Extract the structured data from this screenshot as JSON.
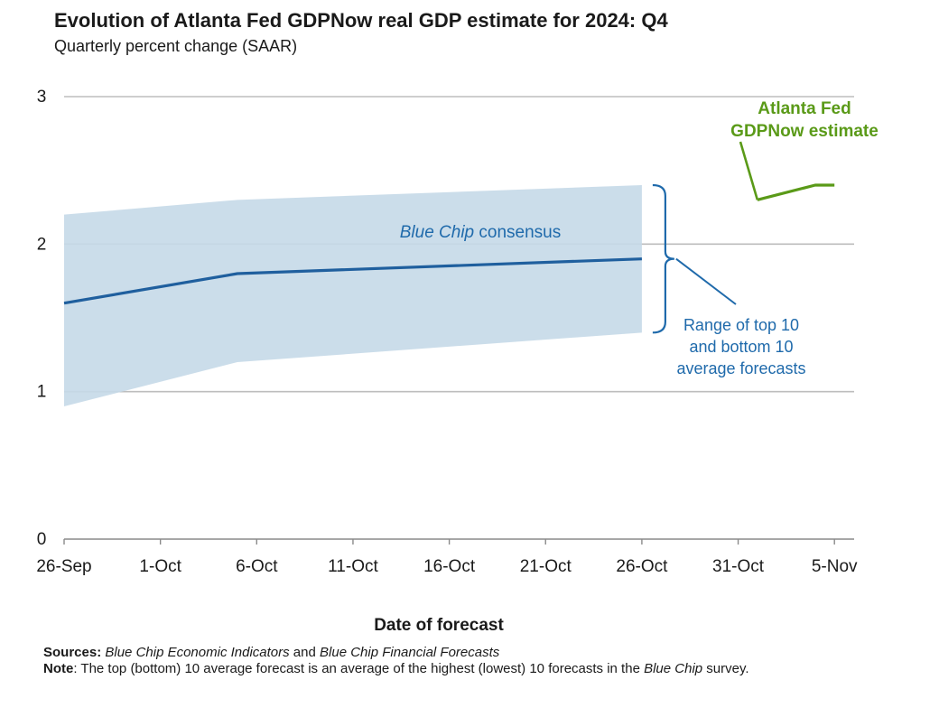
{
  "title": "Evolution of Atlanta Fed GDPNow real GDP estimate for 2024: Q4",
  "subtitle": "Quarterly percent change (SAAR)",
  "colors": {
    "consensus_line": "#1f5f9e",
    "range_band": "#c5d9e8",
    "gdpnow_line": "#5a9a18",
    "grid": "#bdbdbd",
    "annotation_blue": "#1f6aab"
  },
  "chart_data": {
    "type": "line",
    "xlabel": "Date of forecast",
    "ylim": [
      0,
      3
    ],
    "yticks": [
      0,
      1,
      2,
      3
    ],
    "x_ticks": [
      "26-Sep",
      "1-Oct",
      "6-Oct",
      "11-Oct",
      "16-Oct",
      "21-Oct",
      "26-Oct",
      "31-Oct",
      "5-Nov"
    ],
    "grid": true,
    "series": [
      {
        "name": "Blue Chip consensus",
        "x": [
          "26-Sep",
          "5-Oct",
          "26-Oct"
        ],
        "values": [
          1.6,
          1.8,
          1.9
        ]
      },
      {
        "name": "Atlanta Fed GDPNow estimate",
        "x": [
          "1-Nov",
          "4-Nov",
          "5-Nov"
        ],
        "values": [
          2.3,
          2.4,
          2.4
        ]
      }
    ],
    "band": {
      "name": "Range of top 10 and bottom 10 average forecasts",
      "x": [
        "26-Sep",
        "5-Oct",
        "26-Oct"
      ],
      "upper": [
        2.2,
        2.3,
        2.4
      ],
      "lower": [
        0.9,
        1.2,
        1.4
      ]
    },
    "annotations": {
      "consensus_label_italic": "Blue Chip",
      "consensus_label_rest": " consensus",
      "gdpnow_label_lines": [
        "Atlanta Fed",
        "GDPNow estimate"
      ],
      "range_label_lines": [
        "Range of top 10",
        "and bottom 10",
        "average forecasts"
      ]
    }
  },
  "footer": {
    "sources_label": "Sources:",
    "sources_italic_1": "Blue Chip Economic Indicators",
    "sources_mid": " and ",
    "sources_italic_2": "Blue Chip Financial Forecasts",
    "note_label": "Note",
    "note_text": ": The top (bottom) 10 average forecast is an average of the highest (lowest) 10 forecasts in the ",
    "note_italic": "Blue Chip",
    "note_end": " survey."
  }
}
